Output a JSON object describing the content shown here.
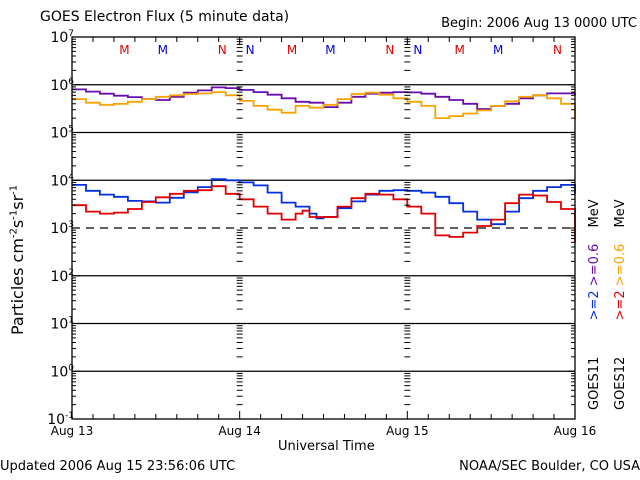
{
  "header": {
    "title": "GOES Electron Flux (5 minute data)",
    "begin": "Begin: 2006 Aug 13 0000 UTC"
  },
  "footer": {
    "updated": "Updated 2006 Aug 15 23:56:06 UTC",
    "source": "NOAA/SEC Boulder, CO USA"
  },
  "legend": {
    "goes11": "GOES11",
    "goes12": "GOES12",
    "goes11_2mev": ">=2",
    "goes11_06mev": ">=0.6",
    "goes12_2mev": ">=2",
    "goes12_06mev": ">=0.6",
    "unit": "MeV"
  },
  "chart_data": {
    "type": "line",
    "title": "GOES Electron Flux (5 minute data)",
    "xlabel": "Universal Time",
    "ylabel": "Particles cm-2s-1sr-1",
    "yscale": "log",
    "ylim": [
      0.1,
      10000000
    ],
    "xlim": [
      0,
      72
    ],
    "x_unit": "hours since 2006 Aug 13 0000 UTC",
    "x_ticks": [
      {
        "x": 0,
        "label": "Aug 13"
      },
      {
        "x": 24,
        "label": "Aug 14"
      },
      {
        "x": 48,
        "label": "Aug 15"
      },
      {
        "x": 72,
        "label": "Aug 16"
      }
    ],
    "y_ticks": [
      {
        "exp": 7,
        "label": "10",
        "sup": "7"
      },
      {
        "exp": 6,
        "label": "10",
        "sup": "6"
      },
      {
        "exp": 5,
        "label": "10",
        "sup": "5"
      },
      {
        "exp": 4,
        "label": "10",
        "sup": "4"
      },
      {
        "exp": 3,
        "label": "10",
        "sup": "3"
      },
      {
        "exp": 2,
        "label": "10",
        "sup": "2"
      },
      {
        "exp": 1,
        "label": "10",
        "sup": "1"
      },
      {
        "exp": 0,
        "label": "10",
        "sup": "0"
      },
      {
        "exp": -1,
        "label": "10",
        "sup": "-1"
      }
    ],
    "grid_exponents": [
      6,
      5,
      4,
      2,
      1,
      0
    ],
    "threshold": {
      "value": 1000,
      "style": "dashed"
    },
    "markers": [
      {
        "x": 7.5,
        "label": "M",
        "color": "#e00000"
      },
      {
        "x": 13,
        "label": "M",
        "color": "#0000e0"
      },
      {
        "x": 21.5,
        "label": "N",
        "color": "#e00000"
      },
      {
        "x": 25.5,
        "label": "N",
        "color": "#0000e0"
      },
      {
        "x": 31.5,
        "label": "M",
        "color": "#e00000"
      },
      {
        "x": 37,
        "label": "M",
        "color": "#0000e0"
      },
      {
        "x": 45.5,
        "label": "N",
        "color": "#e00000"
      },
      {
        "x": 49.5,
        "label": "N",
        "color": "#0000e0"
      },
      {
        "x": 55.5,
        "label": "M",
        "color": "#e00000"
      },
      {
        "x": 61,
        "label": "M",
        "color": "#0000e0"
      },
      {
        "x": 69.5,
        "label": "N",
        "color": "#e00000"
      },
      {
        "x": 73.5,
        "label": "N",
        "color": "#0000e0"
      }
    ],
    "series": [
      {
        "name": "GOES11 >=0.6 MeV",
        "color": "#6a0dad",
        "x": [
          0,
          2,
          4,
          6,
          8,
          10,
          12,
          14,
          16,
          18,
          20,
          22,
          24,
          26,
          28,
          30,
          32,
          34,
          36,
          38,
          40,
          42,
          44,
          46,
          48,
          50,
          52,
          54,
          56,
          58,
          60,
          62,
          64,
          66,
          68,
          70,
          72
        ],
        "y": [
          800000,
          720000,
          650000,
          590000,
          550000,
          500000,
          480000,
          560000,
          680000,
          760000,
          880000,
          850000,
          780000,
          700000,
          620000,
          520000,
          440000,
          420000,
          340000,
          420000,
          560000,
          650000,
          680000,
          700000,
          690000,
          650000,
          560000,
          480000,
          400000,
          310000,
          360000,
          400000,
          520000,
          600000,
          660000,
          660000,
          600000
        ]
      },
      {
        "name": "GOES12 >=0.6 MeV",
        "color": "#f5a300",
        "x": [
          0,
          2,
          4,
          6,
          8,
          10,
          12,
          14,
          16,
          18,
          20,
          22,
          24,
          26,
          28,
          30,
          32,
          34,
          36,
          38,
          40,
          42,
          44,
          46,
          48,
          50,
          52,
          54,
          56,
          58,
          60,
          62,
          64,
          66,
          68,
          70,
          72
        ],
        "y": [
          500000,
          420000,
          380000,
          400000,
          440000,
          500000,
          560000,
          600000,
          640000,
          660000,
          700000,
          600000,
          460000,
          360000,
          300000,
          260000,
          360000,
          330000,
          380000,
          500000,
          640000,
          680000,
          620000,
          520000,
          440000,
          360000,
          200000,
          220000,
          250000,
          290000,
          360000,
          450000,
          560000,
          600000,
          520000,
          400000,
          190000
        ]
      },
      {
        "name": "GOES11 >=2 MeV",
        "color": "#0030e0",
        "x": [
          0,
          2,
          4,
          6,
          8,
          10,
          12,
          14,
          16,
          18,
          20,
          22,
          24,
          26,
          28,
          30,
          32,
          34,
          35,
          36,
          38,
          40,
          42,
          44,
          46,
          48,
          50,
          52,
          54,
          56,
          58,
          60,
          62,
          64,
          66,
          68,
          70,
          72
        ],
        "y": [
          8000,
          6000,
          5000,
          4500,
          3700,
          3600,
          3400,
          4300,
          5600,
          7200,
          10500,
          10000,
          9000,
          7800,
          5500,
          3400,
          2800,
          2000,
          1600,
          1700,
          2600,
          3600,
          5000,
          6000,
          6200,
          6000,
          5500,
          4500,
          3300,
          2200,
          1500,
          1200,
          2200,
          4200,
          6000,
          7200,
          8000,
          5200
        ]
      },
      {
        "name": "GOES12 >=2 MeV",
        "color": "#e00000",
        "x": [
          0,
          2,
          4,
          6,
          8,
          10,
          12,
          14,
          16,
          18,
          20,
          22,
          24,
          26,
          28,
          30,
          32,
          33,
          34,
          36,
          38,
          40,
          42,
          44,
          46,
          48,
          50,
          52,
          54,
          56,
          58,
          60,
          62,
          64,
          66,
          68,
          70,
          72
        ],
        "y": [
          3000,
          2200,
          2000,
          2100,
          2500,
          3500,
          4400,
          5200,
          6000,
          6200,
          7500,
          5200,
          4000,
          2800,
          2000,
          1500,
          2000,
          2300,
          1700,
          1700,
          2800,
          4200,
          5200,
          5000,
          4000,
          2800,
          2000,
          700,
          650,
          800,
          1100,
          1500,
          3300,
          5000,
          4800,
          3500,
          2500,
          500
        ]
      }
    ]
  }
}
